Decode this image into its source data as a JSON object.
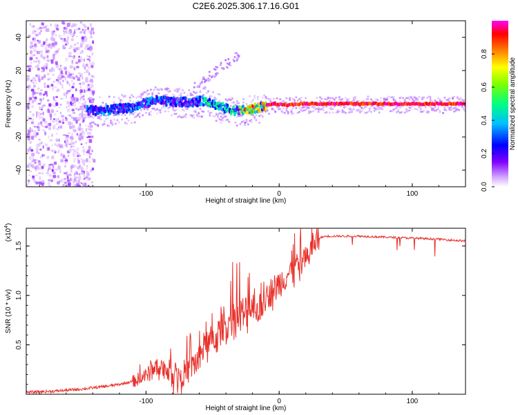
{
  "page_title": "C2E6.2025.306.17.16.G01",
  "chart_data": [
    {
      "type": "heatmap",
      "title": "C2E6.2025.306.17.16.G01",
      "xlabel": "Height of straight line (km)",
      "ylabel": "Frequency (Hz)",
      "xlim": [
        -190,
        140
      ],
      "ylim": [
        -50,
        50
      ],
      "xticks": [
        -100,
        0,
        100
      ],
      "xtick_labels": [
        "-100",
        "0",
        "100"
      ],
      "yticks": [
        -40,
        -20,
        0,
        20,
        40
      ],
      "ytick_labels": [
        "-40",
        "-20",
        "0",
        "20",
        "40"
      ],
      "grid": false,
      "colorbar": {
        "label": "Normalized spectral amplitude",
        "range": [
          0,
          1
        ],
        "ticks": [
          0.0,
          0.2,
          0.4,
          0.6,
          0.8
        ],
        "tick_labels": [
          "0.0",
          "0.2",
          "0.4",
          "0.6",
          "0.8"
        ],
        "colormap": [
          "#ffffff",
          "#c080ff",
          "#8000ff",
          "#0000ff",
          "#00c0ff",
          "#00ff80",
          "#80ff00",
          "#ffff00",
          "#ff8000",
          "#ff0000",
          "#ff00ff"
        ]
      },
      "ridge": {
        "description_values_km_hz": [
          [
            -145,
            -4
          ],
          [
            -130,
            -4
          ],
          [
            -110,
            -2
          ],
          [
            -95,
            2
          ],
          [
            -80,
            1
          ],
          [
            -65,
            1
          ],
          [
            -55,
            2
          ],
          [
            -45,
            -2
          ],
          [
            -35,
            -4
          ],
          [
            -25,
            -4
          ],
          [
            -15,
            -2
          ],
          [
            -5,
            0
          ],
          [
            5,
            -1
          ],
          [
            15,
            0
          ],
          [
            30,
            0
          ],
          [
            60,
            0
          ],
          [
            100,
            0
          ],
          [
            140,
            0
          ]
        ],
        "peak_amplitude_by_segment": [
          {
            "from": -145,
            "to": -60,
            "amplitude": 0.35
          },
          {
            "from": -60,
            "to": -30,
            "amplitude": 0.45
          },
          {
            "from": -30,
            "to": -10,
            "amplitude": 0.75
          },
          {
            "from": -10,
            "to": 140,
            "amplitude": 0.95
          }
        ]
      },
      "noise_region_km": [
        -190,
        -140
      ],
      "colors": {
        "axis": "#000000"
      }
    },
    {
      "type": "line",
      "title": "",
      "xlabel": "Height of straight line (km)",
      "ylabel": "SNR (10 * v/v)",
      "scale_label": "(x10",
      "scale_exponent": "4",
      "scale_close": ")",
      "xlim": [
        -190,
        140
      ],
      "ylim": [
        0,
        1.68
      ],
      "xticks": [
        -100,
        0,
        100
      ],
      "xtick_labels": [
        "-100",
        "0",
        "100"
      ],
      "yticks": [
        0.5,
        1.0,
        1.5
      ],
      "ytick_labels": [
        "0.5",
        "1.0",
        "1.5"
      ],
      "grid": false,
      "series": [
        {
          "name": "SNR",
          "color": "#e8302a",
          "x": [
            -190,
            -170,
            -150,
            -130,
            -120,
            -110,
            -100,
            -95,
            -90,
            -85,
            -80,
            -75,
            -70,
            -65,
            -60,
            -55,
            -50,
            -45,
            -40,
            -35,
            -30,
            -25,
            -20,
            -15,
            -10,
            -5,
            0,
            5,
            10,
            15,
            20,
            25,
            30,
            35,
            40,
            60,
            80,
            100,
            120,
            140
          ],
          "y": [
            0.02,
            0.03,
            0.05,
            0.08,
            0.1,
            0.13,
            0.18,
            0.25,
            0.3,
            0.25,
            0.22,
            0.2,
            0.22,
            0.3,
            0.35,
            0.45,
            0.55,
            0.6,
            0.7,
            0.75,
            0.78,
            0.8,
            0.9,
            0.85,
            1.0,
            1.05,
            1.12,
            1.2,
            1.25,
            1.28,
            1.35,
            1.5,
            1.58,
            1.6,
            1.6,
            1.6,
            1.59,
            1.58,
            1.57,
            1.55
          ]
        }
      ]
    }
  ]
}
